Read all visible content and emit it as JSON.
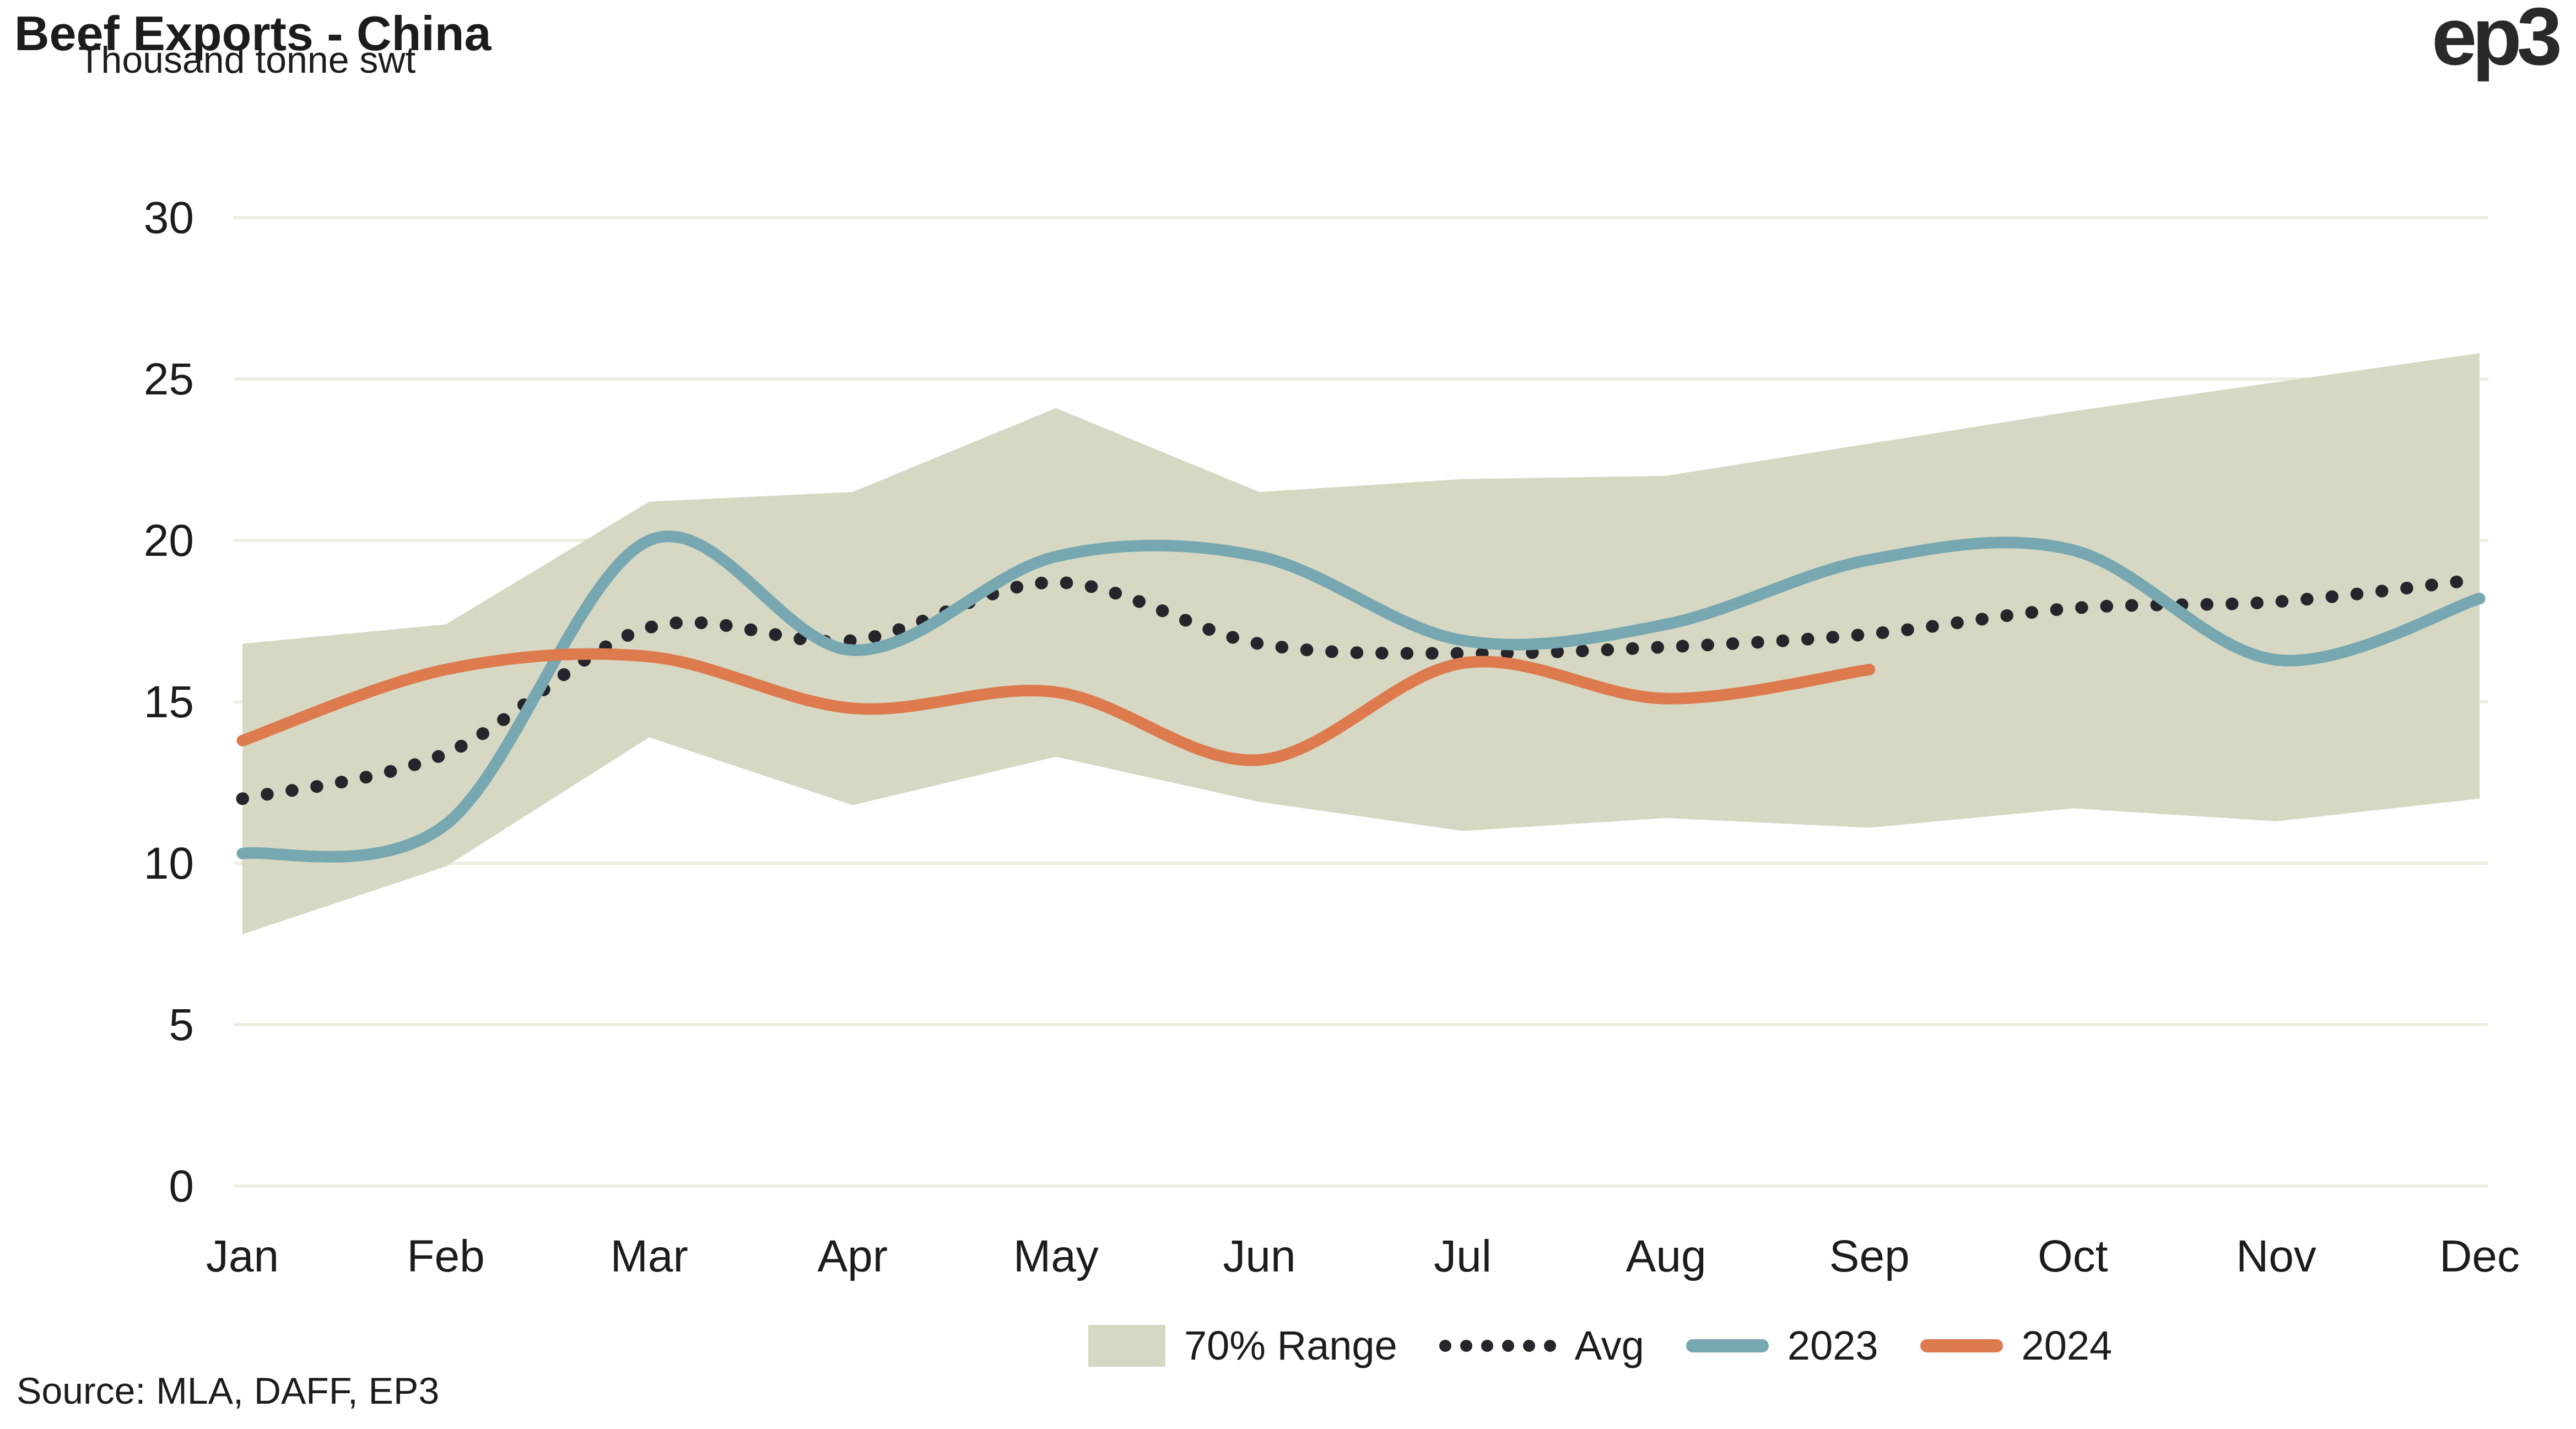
{
  "header": {
    "title": "Beef Exports - China",
    "units_label": "Thousand tonne swt",
    "logo_text": "ep3"
  },
  "source": {
    "text": "Source: MLA, DAFF, EP3"
  },
  "legend": {
    "position": "bottom",
    "items": [
      {
        "id": "range",
        "label": "70% Range",
        "color": "#d6d8c3"
      },
      {
        "id": "avg",
        "label": "Avg",
        "color": "#25252b"
      },
      {
        "id": "2023",
        "label": "2023",
        "color": "#77a7b0"
      },
      {
        "id": "2024",
        "label": "2024",
        "color": "#dd7a4e"
      }
    ]
  },
  "colors": {
    "background": "#ffffff",
    "gridline": "#edeee1",
    "text": "#1c1c1c",
    "logo": "#2b2928"
  },
  "chart_data": {
    "type": "line",
    "title": "Beef Exports - China",
    "xlabel": "",
    "ylabel": "Thousand tonne swt",
    "ylim": [
      0,
      30
    ],
    "yticks": [
      0,
      5,
      10,
      15,
      20,
      25,
      30
    ],
    "grid": "horizontal",
    "legend_position": "bottom",
    "categories": [
      "Jan",
      "Feb",
      "Mar",
      "Apr",
      "May",
      "Jun",
      "Jul",
      "Aug",
      "Sep",
      "Oct",
      "Nov",
      "Dec"
    ],
    "band": {
      "name": "70% Range",
      "color": "#d6d8c3",
      "top": [
        16.8,
        17.4,
        21.2,
        21.5,
        24.1,
        21.5,
        21.9,
        22.0,
        23.0,
        24.0,
        24.9,
        25.8
      ],
      "bottom": [
        7.8,
        9.9,
        13.9,
        11.8,
        13.3,
        11.9,
        11.0,
        11.4,
        11.1,
        11.7,
        11.3,
        12.0
      ]
    },
    "series": [
      {
        "name": "Avg",
        "style": "dotted",
        "color": "#25252b",
        "values": [
          12.0,
          13.4,
          17.3,
          16.9,
          18.7,
          16.8,
          16.5,
          16.7,
          17.1,
          17.9,
          18.1,
          18.8
        ]
      },
      {
        "name": "2023",
        "style": "solid",
        "color": "#77a7b0",
        "values": [
          10.3,
          11.2,
          20.0,
          16.6,
          19.5,
          19.5,
          16.9,
          17.4,
          19.4,
          19.7,
          16.3,
          18.2
        ]
      },
      {
        "name": "2024",
        "style": "solid",
        "color": "#dd7a4e",
        "values": [
          13.8,
          16.0,
          16.4,
          14.8,
          15.3,
          13.2,
          16.2,
          15.1,
          16.0,
          null,
          null,
          null
        ]
      }
    ]
  }
}
